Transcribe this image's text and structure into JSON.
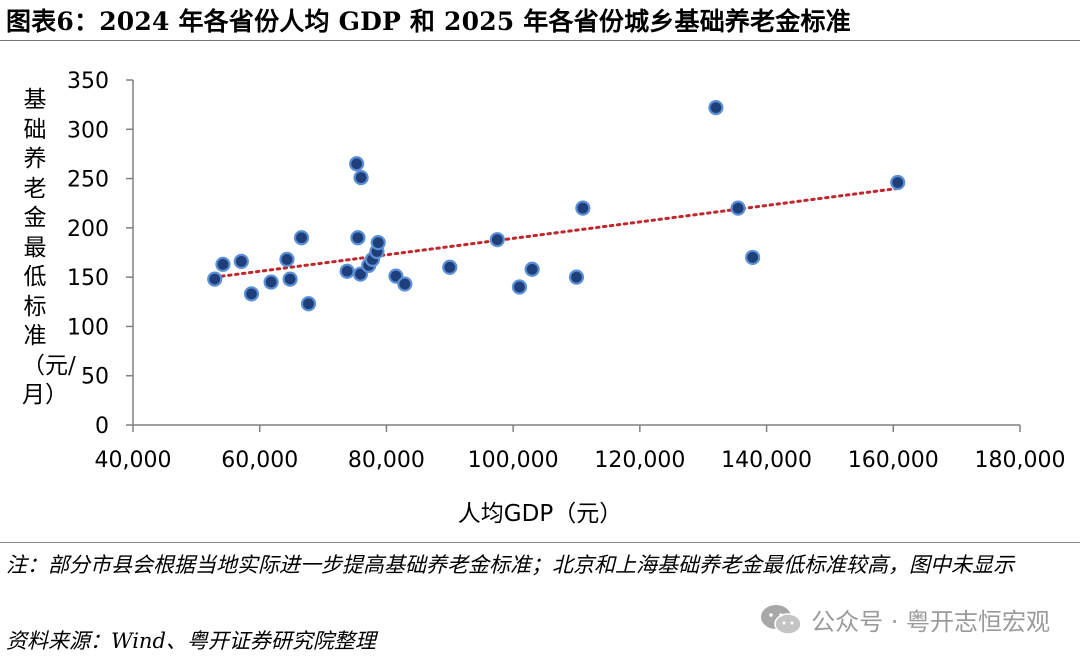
{
  "title": "图表6：2024 年各省份人均 GDP 和 2025 年各省份城乡基础养老金标准",
  "note": "注：部分市县会根据当地实际进一步提高基础养老金标准；北京和上海基础养老金最低标准较高，图中未显示",
  "source": "资料来源：Wind、粤开证券研究院整理",
  "watermark": "公众号 · 粤开志恒宏观",
  "colors": {
    "point_fill": "#1f3f7a",
    "point_stroke": "#5b8fd6",
    "trend": "#c0272d"
  },
  "icons": {
    "watermark": "wechat-icon"
  },
  "chart_data": {
    "type": "scatter",
    "xlabel": "人均GDP（元）",
    "ylabel": "基础养老金最低标准（元/月）",
    "xlim": [
      40000,
      180000
    ],
    "ylim": [
      0,
      350
    ],
    "xticks": [
      "40,000",
      "60,000",
      "80,000",
      "100,000",
      "120,000",
      "140,000",
      "160,000",
      "180,000"
    ],
    "yticks": [
      "0",
      "50",
      "100",
      "150",
      "200",
      "250",
      "300",
      "350"
    ],
    "grid": false,
    "points": [
      {
        "x": 52900,
        "y": 148
      },
      {
        "x": 54200,
        "y": 163
      },
      {
        "x": 57100,
        "y": 166
      },
      {
        "x": 58700,
        "y": 133
      },
      {
        "x": 61800,
        "y": 145
      },
      {
        "x": 64300,
        "y": 168
      },
      {
        "x": 64800,
        "y": 148
      },
      {
        "x": 66600,
        "y": 190
      },
      {
        "x": 67700,
        "y": 123
      },
      {
        "x": 73800,
        "y": 156
      },
      {
        "x": 75300,
        "y": 265
      },
      {
        "x": 75500,
        "y": 190
      },
      {
        "x": 75900,
        "y": 153
      },
      {
        "x": 76000,
        "y": 251
      },
      {
        "x": 77200,
        "y": 162
      },
      {
        "x": 77800,
        "y": 168
      },
      {
        "x": 78500,
        "y": 176
      },
      {
        "x": 78700,
        "y": 185
      },
      {
        "x": 81500,
        "y": 151
      },
      {
        "x": 82900,
        "y": 143
      },
      {
        "x": 90000,
        "y": 160
      },
      {
        "x": 97500,
        "y": 188
      },
      {
        "x": 101000,
        "y": 140
      },
      {
        "x": 103000,
        "y": 158
      },
      {
        "x": 110000,
        "y": 150
      },
      {
        "x": 111000,
        "y": 220
      },
      {
        "x": 132000,
        "y": 322
      },
      {
        "x": 135500,
        "y": 220
      },
      {
        "x": 137800,
        "y": 170
      },
      {
        "x": 160700,
        "y": 246
      }
    ],
    "trendline": {
      "x": [
        52900,
        160700
      ],
      "y": [
        150,
        240
      ],
      "style": "dotted"
    }
  }
}
